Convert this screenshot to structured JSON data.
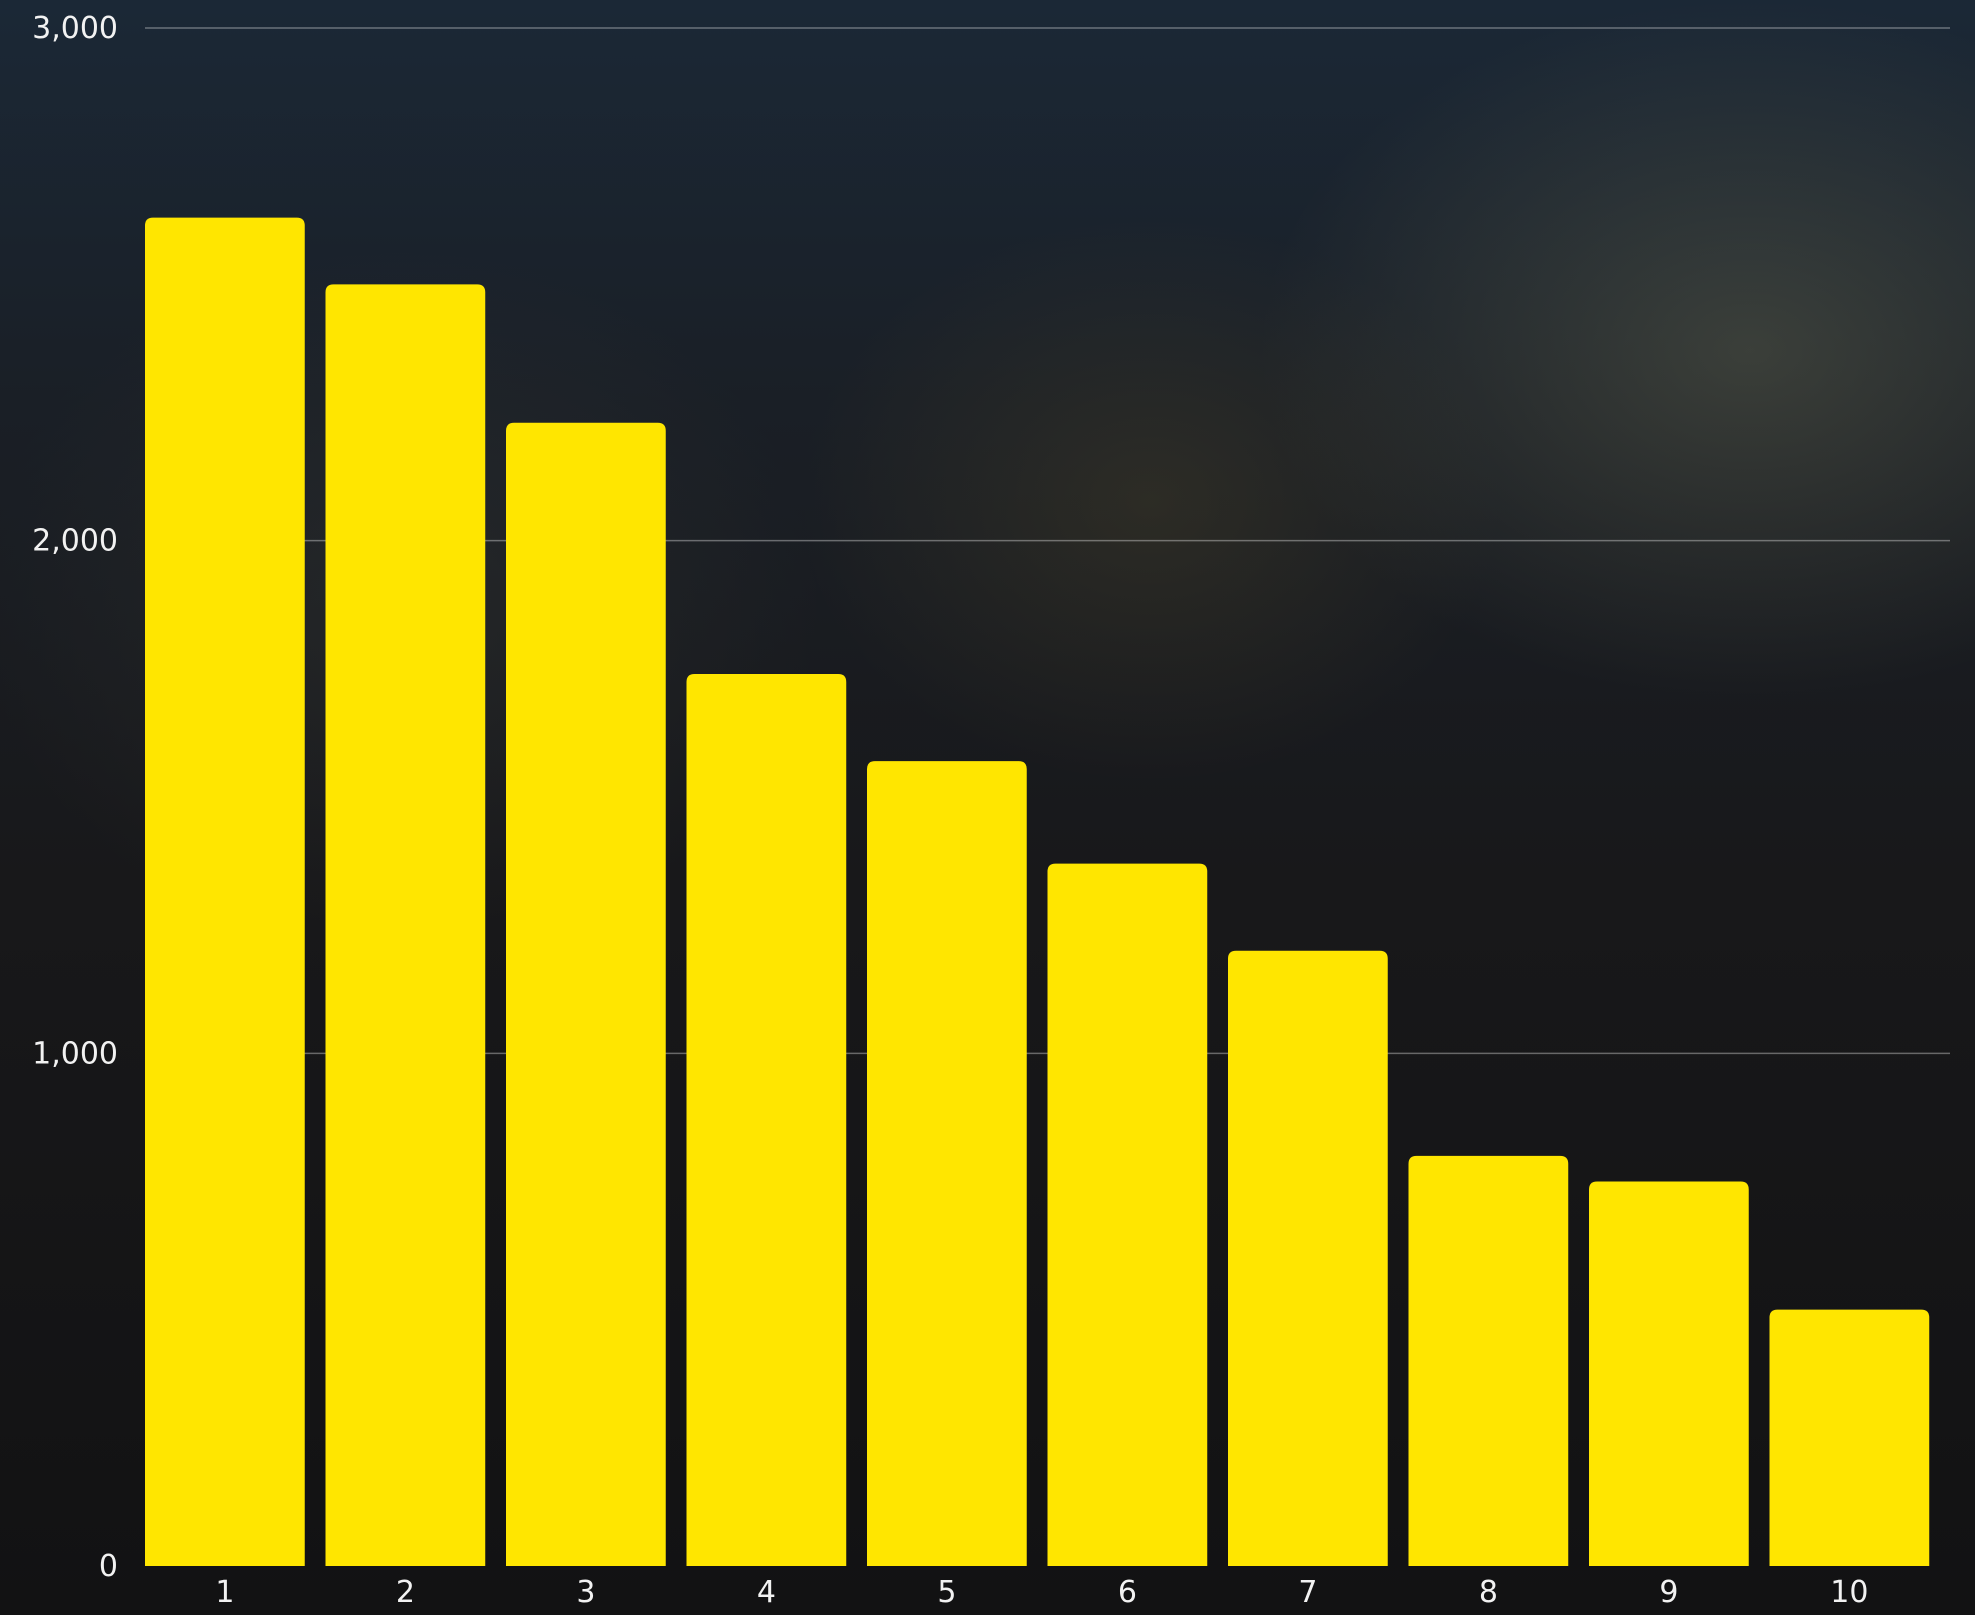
{
  "chart_data": {
    "type": "bar",
    "title": "",
    "xlabel": "",
    "ylabel": "",
    "categories": [
      "1",
      "2",
      "3",
      "4",
      "5",
      "6",
      "7",
      "8",
      "9",
      "10"
    ],
    "values": [
      2630,
      2500,
      2230,
      1740,
      1570,
      1370,
      1200,
      800,
      750,
      500
    ],
    "ylim": [
      0,
      3000
    ],
    "yticks": [
      0,
      1000,
      2000,
      3000
    ],
    "ytick_labels": [
      "0",
      "1,000",
      "2,000",
      "3,000"
    ],
    "grid": true,
    "legend": "none",
    "bar_color": "#FFE600"
  }
}
